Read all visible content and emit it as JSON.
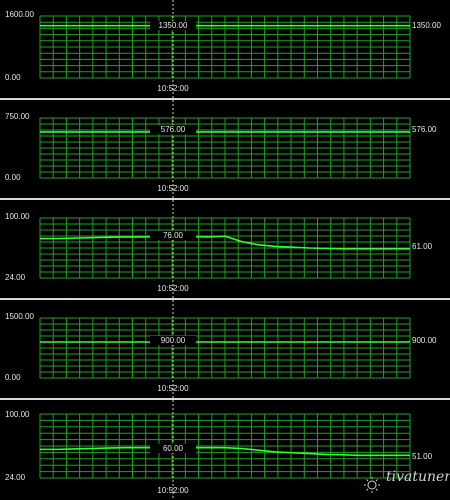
{
  "window": {
    "background": "#000000"
  },
  "colors": {
    "grid": "#1fa31f",
    "trace": "#30ff30",
    "cursor": "#d8d880",
    "text": "#e8e8e8"
  },
  "cursor_time": "10:52:00",
  "watermark": {
    "text": "tivatuner",
    "icon": "gear-sun-icon"
  },
  "graphs": [
    {
      "id": "graph-1",
      "ymax_label": "1600.00",
      "ymin_label": "0.00",
      "ymax": 1600,
      "ymin": 0,
      "current_label": "1350.00",
      "cursor_label": "1350.00",
      "trace": {
        "type": "flat",
        "value": 1350
      }
    },
    {
      "id": "graph-2",
      "ymax_label": "750.00",
      "ymin_label": "0.00",
      "ymax": 750,
      "ymin": 0,
      "current_label": "576.00",
      "cursor_label": "576.00",
      "trace": {
        "type": "flat",
        "value": 576
      }
    },
    {
      "id": "graph-3",
      "ymax_label": "100.00",
      "ymin_label": "24.00",
      "ymax": 100,
      "ymin": 24,
      "current_label": "61.00",
      "cursor_label": "76.00",
      "trace": {
        "type": "series",
        "values": [
          74,
          74,
          74.5,
          75,
          75.5,
          76,
          76,
          76.5,
          77,
          76.5,
          76,
          77,
          70,
          66,
          64,
          63,
          62,
          61.5,
          61,
          61,
          61,
          61,
          61
        ]
      }
    },
    {
      "id": "graph-4",
      "ymax_label": "1500.00",
      "ymin_label": "0.00",
      "ymax": 1500,
      "ymin": 0,
      "current_label": "900.00",
      "cursor_label": "900.00",
      "trace": {
        "type": "flat",
        "value": 900
      }
    },
    {
      "id": "graph-5",
      "ymax_label": "100.00",
      "ymin_label": "24.00",
      "ymax": 100,
      "ymin": 24,
      "current_label": "51.00",
      "cursor_label": "60.00",
      "trace": {
        "type": "series",
        "values": [
          58,
          58,
          58.5,
          59,
          59.5,
          60,
          60,
          60,
          60,
          60,
          60,
          60,
          59,
          57,
          55,
          54,
          53,
          52,
          51.5,
          51,
          51,
          51,
          51
        ]
      }
    }
  ]
}
